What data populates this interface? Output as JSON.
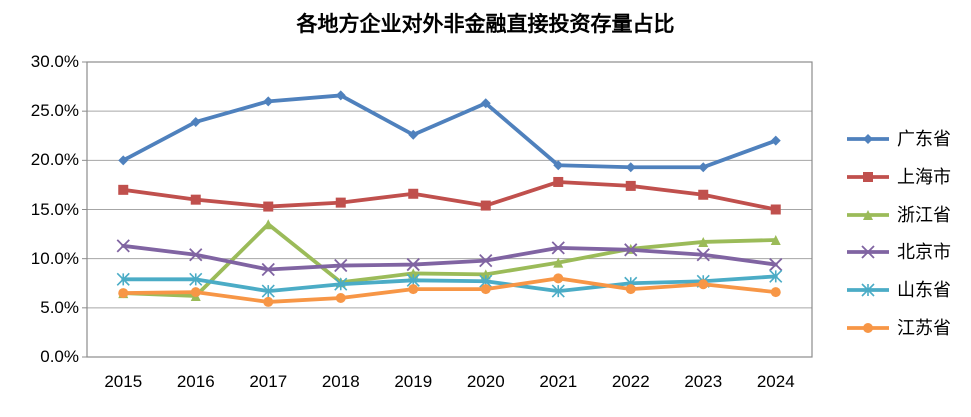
{
  "chart_data": {
    "type": "line",
    "title": "各地方企业对外非金融直接投资存量占比",
    "categories": [
      "2015",
      "2016",
      "2017",
      "2018",
      "2019",
      "2020",
      "2021",
      "2022",
      "2023",
      "2024"
    ],
    "series": [
      {
        "name": "广东省",
        "key": "guangdong",
        "color": "#4F81BD",
        "marker": "diamond",
        "values": [
          20.0,
          23.9,
          26.0,
          26.6,
          22.6,
          25.8,
          19.5,
          19.3,
          19.3,
          22.0
        ]
      },
      {
        "name": "上海市",
        "key": "shanghai",
        "color": "#C0504D",
        "marker": "square",
        "values": [
          17.0,
          16.0,
          15.3,
          15.7,
          16.6,
          15.4,
          17.8,
          17.4,
          16.5,
          15.0
        ]
      },
      {
        "name": "浙江省",
        "key": "zhejiang",
        "color": "#9BBB59",
        "marker": "triangle",
        "values": [
          6.5,
          6.2,
          13.5,
          7.6,
          8.5,
          8.4,
          9.6,
          11.0,
          11.7,
          11.9
        ]
      },
      {
        "name": "北京市",
        "key": "beijing",
        "color": "#8064A2",
        "marker": "x",
        "values": [
          11.3,
          10.4,
          8.9,
          9.3,
          9.4,
          9.8,
          11.1,
          10.9,
          10.4,
          9.4
        ]
      },
      {
        "name": "山东省",
        "key": "shandong",
        "color": "#4BACC6",
        "marker": "star",
        "values": [
          7.9,
          7.9,
          6.7,
          7.4,
          7.8,
          7.7,
          6.7,
          7.5,
          7.7,
          8.2
        ]
      },
      {
        "name": "江苏省",
        "key": "jiangsu",
        "color": "#F79646",
        "marker": "circle",
        "values": [
          6.5,
          6.6,
          5.6,
          6.0,
          6.9,
          6.9,
          8.0,
          6.9,
          7.4,
          6.6
        ]
      }
    ],
    "ylim": [
      0,
      30
    ],
    "yticks": [
      {
        "value": 0,
        "label": "0.0%"
      },
      {
        "value": 5,
        "label": "5.0%"
      },
      {
        "value": 10,
        "label": "10.0%"
      },
      {
        "value": 15,
        "label": "15.0%"
      },
      {
        "value": 20,
        "label": "20.0%"
      },
      {
        "value": 25,
        "label": "25.0%"
      },
      {
        "value": 30,
        "label": "30.0%"
      }
    ],
    "grid": true,
    "legend_position": "right",
    "style": {
      "gridline_color": "#A6A6A6",
      "plot_border_color": "#8C8C8C"
    }
  }
}
